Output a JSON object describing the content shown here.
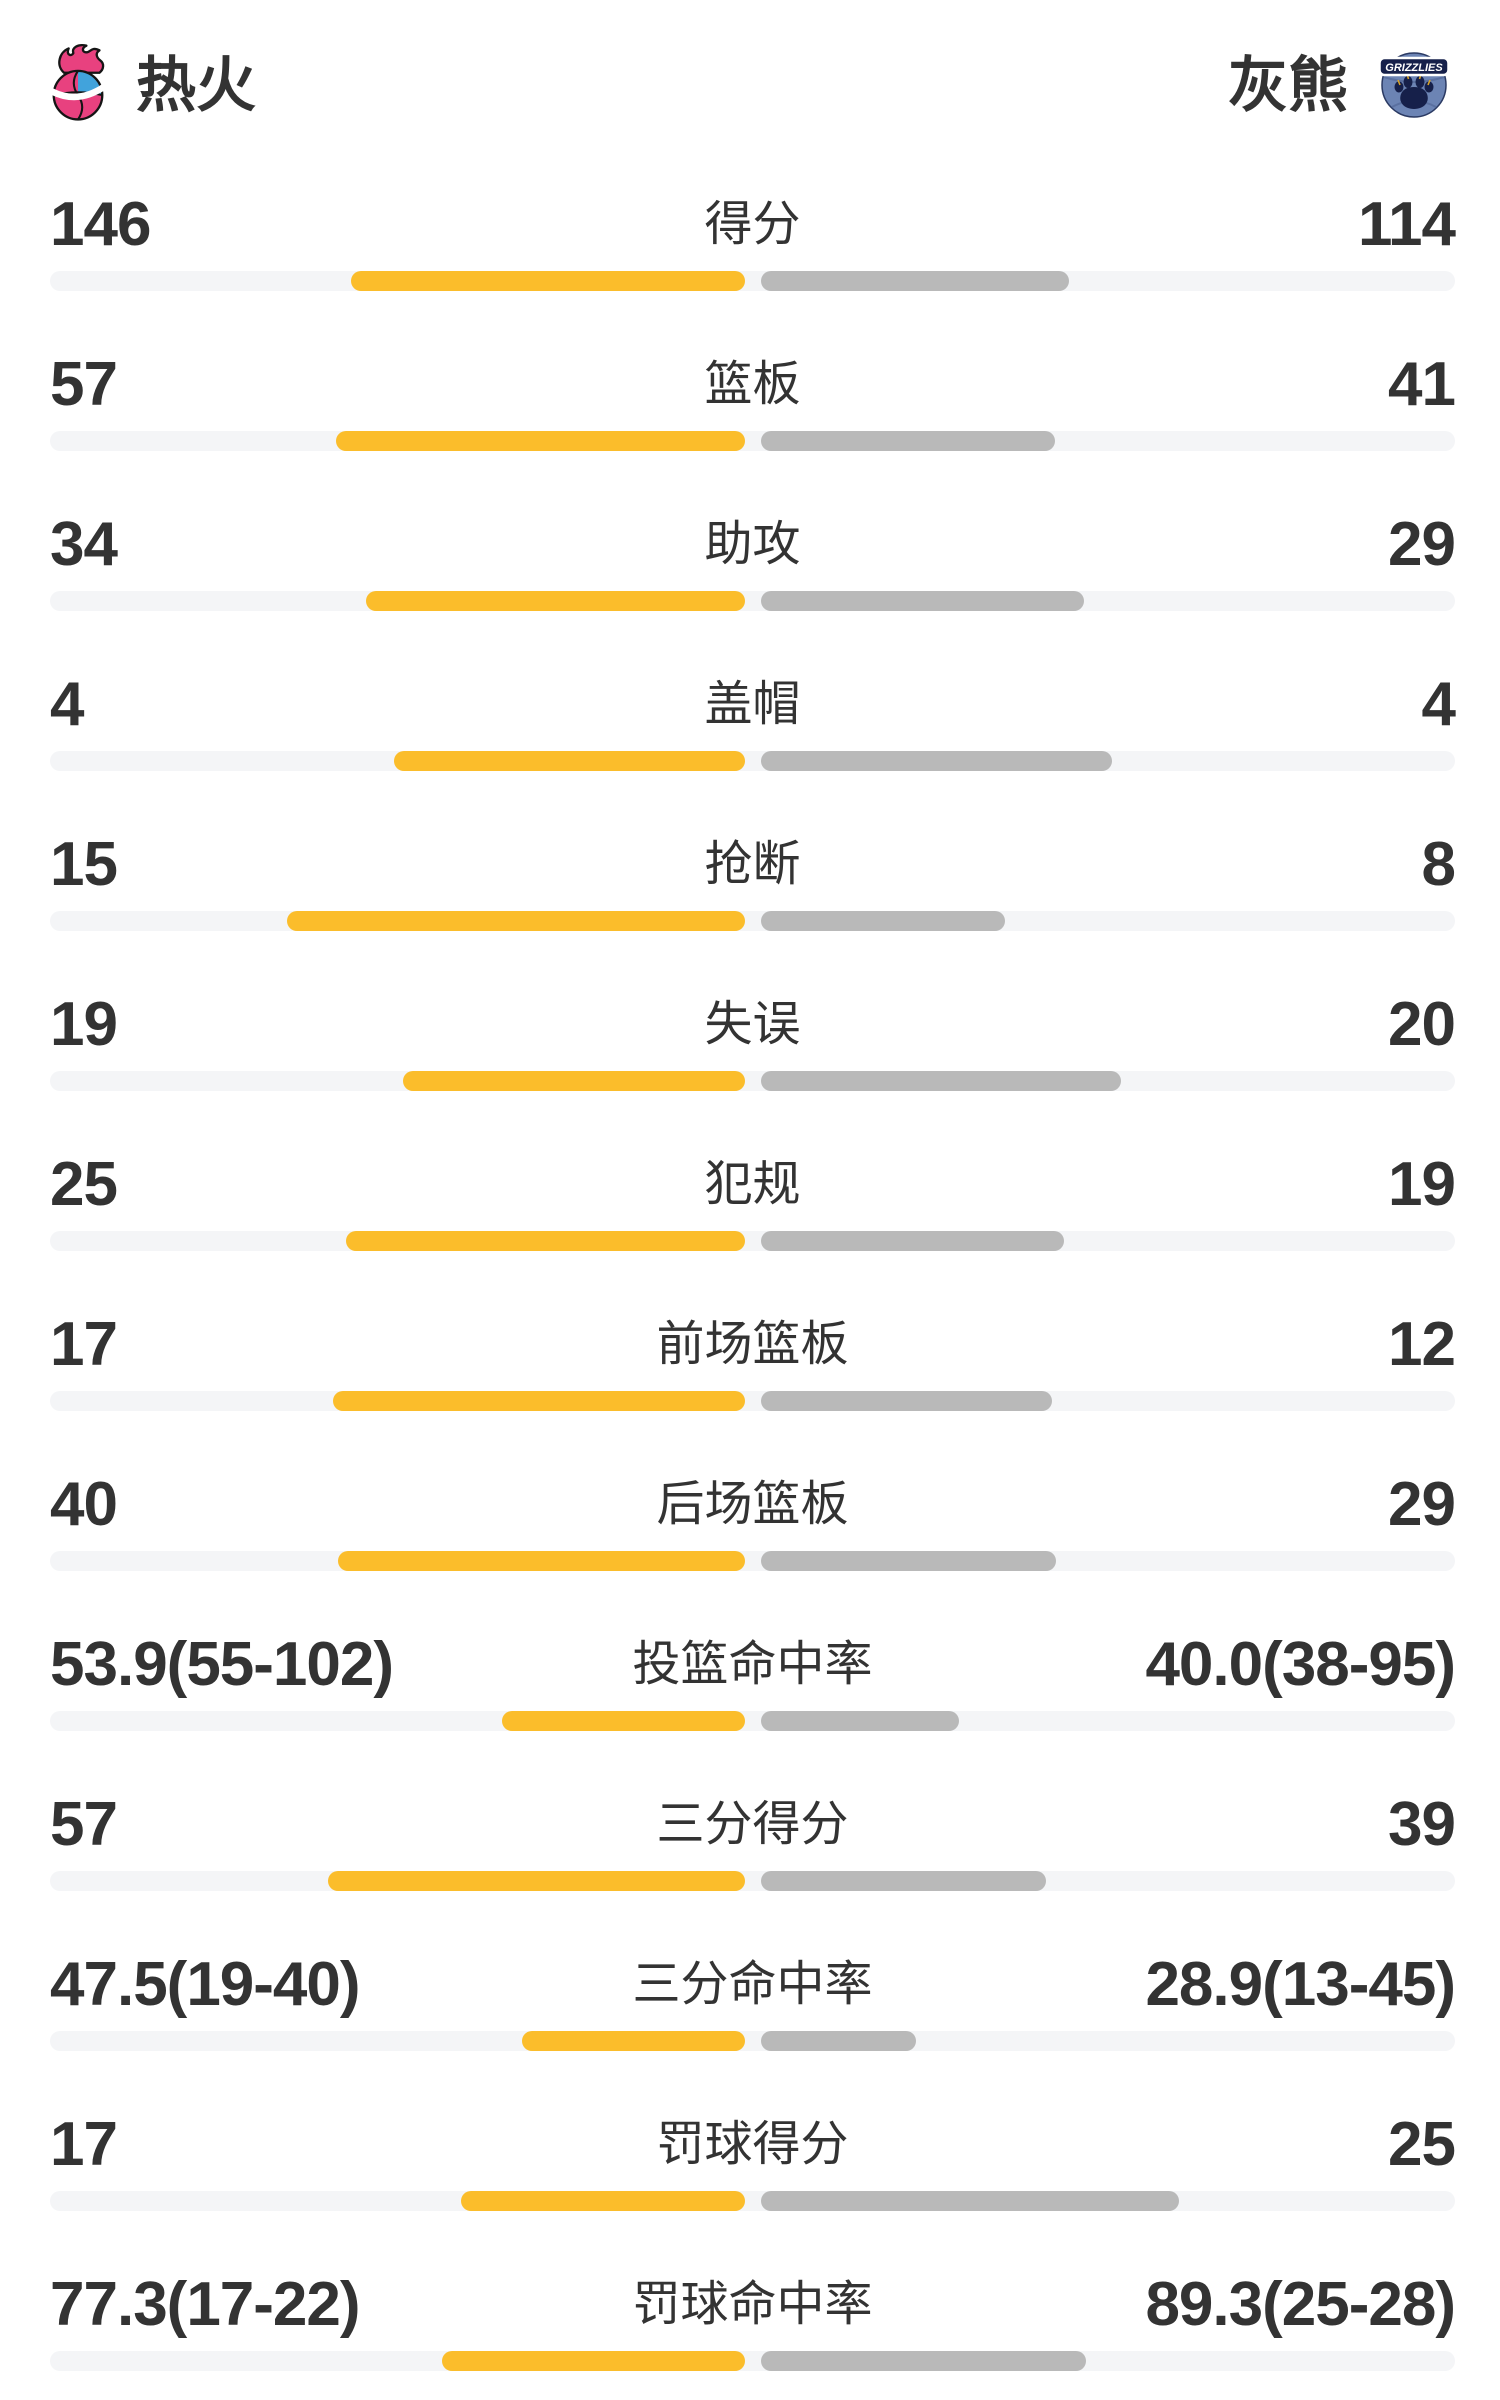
{
  "header": {
    "left_team": {
      "name": "热火",
      "logo": "heat-flaming-basketball"
    },
    "right_team": {
      "name": "灰熊",
      "logo": "grizzlies-paw-basketball",
      "logo_banner_text": "GRIZZLIES"
    }
  },
  "chart_data": {
    "type": "bar",
    "orientation": "horizontal-paired-center-out",
    "teams": [
      "热火",
      "灰熊"
    ],
    "legend_position": "top",
    "grid": false,
    "bar_total_fraction": 0.5,
    "colors": {
      "left_bar": "#FBBD2B",
      "right_bar": "#B9B9B9",
      "track": "#F4F5F7",
      "text": "#333333"
    },
    "rows": [
      {
        "id": "points",
        "label": "得分",
        "left": "146",
        "right": "114",
        "left_value": 146,
        "right_value": 114
      },
      {
        "id": "rebounds",
        "label": "篮板",
        "left": "57",
        "right": "41",
        "left_value": 57,
        "right_value": 41
      },
      {
        "id": "assists",
        "label": "助攻",
        "left": "34",
        "right": "29",
        "left_value": 34,
        "right_value": 29
      },
      {
        "id": "blocks",
        "label": "盖帽",
        "left": "4",
        "right": "4",
        "left_value": 4,
        "right_value": 4
      },
      {
        "id": "steals",
        "label": "抢断",
        "left": "15",
        "right": "8",
        "left_value": 15,
        "right_value": 8
      },
      {
        "id": "turnovers",
        "label": "失误",
        "left": "19",
        "right": "20",
        "left_value": 19,
        "right_value": 20
      },
      {
        "id": "fouls",
        "label": "犯规",
        "left": "25",
        "right": "19",
        "left_value": 25,
        "right_value": 19
      },
      {
        "id": "offensive-rebounds",
        "label": "前场篮板",
        "left": "17",
        "right": "12",
        "left_value": 17,
        "right_value": 12
      },
      {
        "id": "defensive-rebounds",
        "label": "后场篮板",
        "left": "40",
        "right": "29",
        "left_value": 40,
        "right_value": 29
      },
      {
        "id": "fg-pct",
        "label": "投篮命中率",
        "left": "53.9(55-102)",
        "right": "40.0(38-95)",
        "left_value": 53.9,
        "right_value": 40.0,
        "left_fill": 0.173,
        "right_fill": 0.141
      },
      {
        "id": "three-pt-points",
        "label": "三分得分",
        "left": "57",
        "right": "39",
        "left_value": 57,
        "right_value": 39
      },
      {
        "id": "three-pt-pct",
        "label": "三分命中率",
        "left": "47.5(19-40)",
        "right": "28.9(13-45)",
        "left_value": 47.5,
        "right_value": 28.9,
        "left_fill": 0.159,
        "right_fill": 0.11
      },
      {
        "id": "ft-points",
        "label": "罚球得分",
        "left": "17",
        "right": "25",
        "left_value": 17,
        "right_value": 25
      },
      {
        "id": "ft-pct",
        "label": "罚球命中率",
        "left": "77.3(17-22)",
        "right": "89.3(25-28)",
        "left_value": 77.3,
        "right_value": 89.3,
        "left_fill": 0.216,
        "right_fill": 0.231
      }
    ]
  }
}
